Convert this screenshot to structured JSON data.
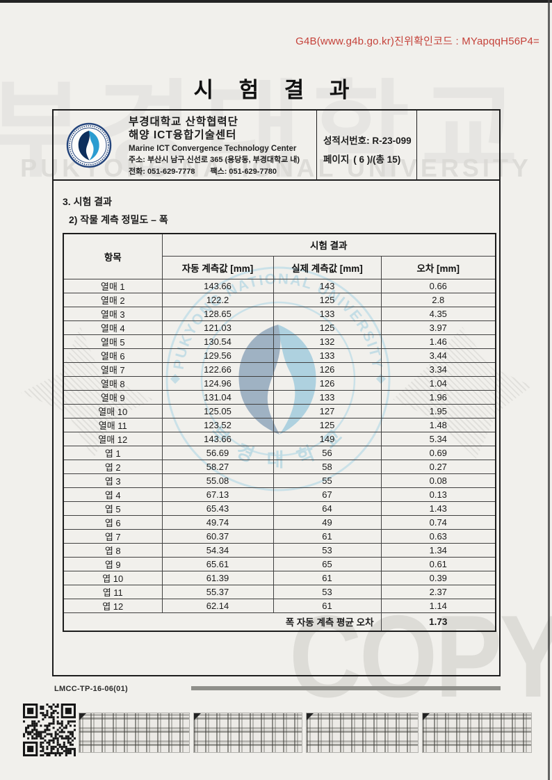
{
  "verification_code": {
    "text": "G4B(www.g4b.go.kr)진위확인코드 : MYapqqH56P4=",
    "color": "#c5423a"
  },
  "title": "시 험 결 과",
  "issuer": {
    "name_line1": "부경대학교 산학협력단",
    "name_line2": "해양 ICT융합기술센터",
    "name_en": "Marine ICT Convergence Technology Center",
    "address": "주소: 부산시 남구 신선로 365 (용당동, 부경대학교 내)",
    "phone": "전화: 051-629-7778",
    "fax": "팩스: 051-629-7780",
    "logo": "pukyong-university-seal-icon"
  },
  "report_meta": {
    "report_no_label": "성적서번호:",
    "report_no_value": "R-23-099",
    "page_label": "페이지",
    "page_value": "( 6 )/(총 15)"
  },
  "sections": {
    "heading": "3. 시험 결과",
    "subheading": "2) 작물 계측 정밀도 – 폭"
  },
  "table": {
    "col_item": "항목",
    "group_header": "시험 결과",
    "col_auto": "자동 계측값 [mm]",
    "col_actual": "실제 계측값 [mm]",
    "col_error": "오차 [mm]",
    "rows": [
      {
        "item": "열매 1",
        "auto": "143.66",
        "actual": "143",
        "error": "0.66"
      },
      {
        "item": "열매 2",
        "auto": "122.2",
        "actual": "125",
        "error": "2.8"
      },
      {
        "item": "열매 3",
        "auto": "128.65",
        "actual": "133",
        "error": "4.35"
      },
      {
        "item": "열매 4",
        "auto": "121.03",
        "actual": "125",
        "error": "3.97"
      },
      {
        "item": "열매 5",
        "auto": "130.54",
        "actual": "132",
        "error": "1.46"
      },
      {
        "item": "열매 6",
        "auto": "129.56",
        "actual": "133",
        "error": "3.44"
      },
      {
        "item": "열매 7",
        "auto": "122.66",
        "actual": "126",
        "error": "3.34"
      },
      {
        "item": "열매 8",
        "auto": "124.96",
        "actual": "126",
        "error": "1.04"
      },
      {
        "item": "열매 9",
        "auto": "131.04",
        "actual": "133",
        "error": "1.96"
      },
      {
        "item": "열매 10",
        "auto": "125.05",
        "actual": "127",
        "error": "1.95"
      },
      {
        "item": "열매 11",
        "auto": "123.52",
        "actual": "125",
        "error": "1.48"
      },
      {
        "item": "열매 12",
        "auto": "143.66",
        "actual": "149",
        "error": "5.34"
      },
      {
        "item": "엽 1",
        "auto": "56.69",
        "actual": "56",
        "error": "0.69"
      },
      {
        "item": "엽 2",
        "auto": "58.27",
        "actual": "58",
        "error": "0.27"
      },
      {
        "item": "엽 3",
        "auto": "55.08",
        "actual": "55",
        "error": "0.08"
      },
      {
        "item": "엽 4",
        "auto": "67.13",
        "actual": "67",
        "error": "0.13"
      },
      {
        "item": "엽 5",
        "auto": "65.43",
        "actual": "64",
        "error": "1.43"
      },
      {
        "item": "엽 6",
        "auto": "49.74",
        "actual": "49",
        "error": "0.74"
      },
      {
        "item": "엽 7",
        "auto": "60.37",
        "actual": "61",
        "error": "0.63"
      },
      {
        "item": "엽 8",
        "auto": "54.34",
        "actual": "53",
        "error": "1.34"
      },
      {
        "item": "엽 9",
        "auto": "65.61",
        "actual": "65",
        "error": "0.61"
      },
      {
        "item": "엽 10",
        "auto": "61.39",
        "actual": "61",
        "error": "0.39"
      },
      {
        "item": "엽 11",
        "auto": "55.37",
        "actual": "53",
        "error": "2.37"
      },
      {
        "item": "엽 12",
        "auto": "62.14",
        "actual": "61",
        "error": "1.14"
      }
    ],
    "footer_label": "폭 자동 계측 평균 오차",
    "footer_value": "1.73"
  },
  "doc_footer": {
    "doc_code": "LMCC-TP-16-06(01)"
  },
  "watermarks": {
    "university_kr": "부경대학교",
    "university_en": "PUKYONG NATIONAL UNIVERSITY",
    "copy_text": "COPY",
    "seal_top_text": "PUKYONG NATIONAL UNIVERSITY",
    "seal_bottom_text": "부 경 대 학 교",
    "seal_color": "#a7d4e5"
  }
}
